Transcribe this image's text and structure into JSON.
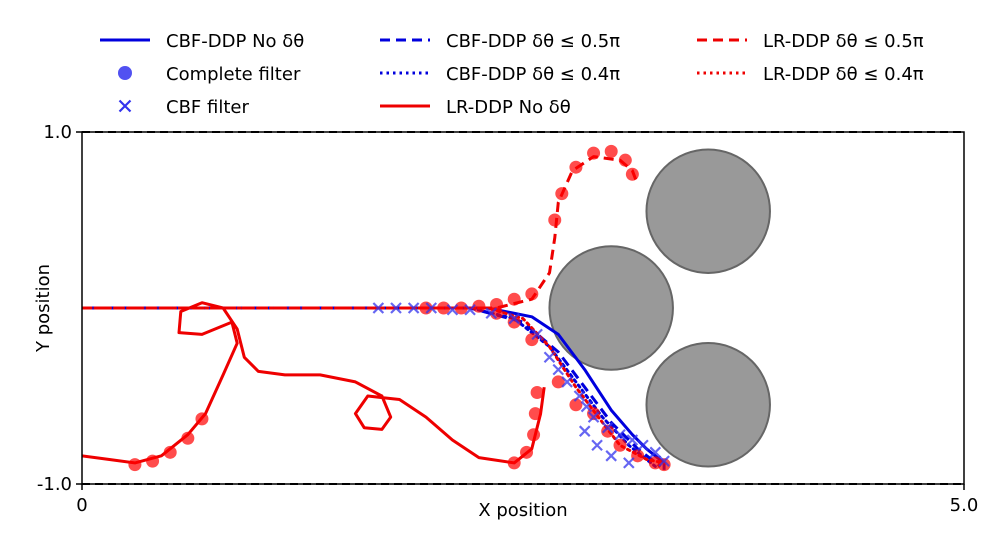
{
  "chart_data": {
    "type": "line",
    "xlabel": "X position",
    "ylabel": "Y position",
    "xlim": [
      0,
      5.0
    ],
    "ylim": [
      -1.0,
      1.0
    ],
    "x_ticks": [
      {
        "value": 0,
        "label": "0"
      },
      {
        "value": 5.0,
        "label": "5.0"
      }
    ],
    "y_ticks": [
      {
        "value": 1.0,
        "label": "1.0"
      },
      {
        "value": -1.0,
        "label": "-1.0"
      }
    ],
    "boundaries": [
      1.0,
      -1.0
    ],
    "obstacles": [
      {
        "cx": 3.55,
        "cy": 0.55,
        "r": 0.35
      },
      {
        "cx": 3.0,
        "cy": 0.0,
        "r": 0.35
      },
      {
        "cx": 3.55,
        "cy": -0.55,
        "r": 0.35
      }
    ],
    "legend": {
      "placement": "top",
      "columns": 3,
      "entries": [
        {
          "label": "CBF-DDP No δθ",
          "style": "solid",
          "color": "#0000dd",
          "kind": "line"
        },
        {
          "label": "Complete filter",
          "style": "marker",
          "color": "#3333ee",
          "kind": "dot"
        },
        {
          "label": "CBF filter",
          "style": "marker",
          "color": "#3333ee",
          "kind": "cross"
        },
        {
          "label": "CBF-DDP δθ ≤ 0.5π",
          "style": "dashed",
          "color": "#0000dd",
          "kind": "line"
        },
        {
          "label": "CBF-DDP δθ ≤ 0.4π",
          "style": "dotted",
          "color": "#0000dd",
          "kind": "line"
        },
        {
          "label": "LR-DDP No δθ",
          "style": "solid",
          "color": "#ee0000",
          "kind": "line"
        },
        {
          "label": "LR-DDP δθ ≤ 0.5π",
          "style": "dashed",
          "color": "#ee0000",
          "kind": "line"
        },
        {
          "label": "LR-DDP δθ ≤ 0.4π",
          "style": "dotted",
          "color": "#ee0000",
          "kind": "line"
        }
      ]
    },
    "series": [
      {
        "name": "CBF-DDP No δθ",
        "color": "#0000dd",
        "style": "solid",
        "points": [
          [
            0,
            0
          ],
          [
            1.5,
            0
          ],
          [
            1.95,
            0
          ],
          [
            2.3,
            0
          ],
          [
            2.55,
            -0.05
          ],
          [
            2.7,
            -0.15
          ],
          [
            2.85,
            -0.35
          ],
          [
            3.0,
            -0.58
          ],
          [
            3.12,
            -0.72
          ],
          [
            3.2,
            -0.8
          ],
          [
            3.3,
            -0.88
          ],
          [
            3.3,
            -0.92
          ]
        ]
      },
      {
        "name": "CBF-DDP δθ ≤ 0.5π",
        "color": "#0000dd",
        "style": "dashed",
        "points": [
          [
            0,
            0
          ],
          [
            1.7,
            0
          ],
          [
            2.2,
            0
          ],
          [
            2.5,
            -0.08
          ],
          [
            2.7,
            -0.25
          ],
          [
            2.85,
            -0.45
          ],
          [
            3.0,
            -0.65
          ],
          [
            3.15,
            -0.8
          ],
          [
            3.28,
            -0.9
          ]
        ]
      },
      {
        "name": "CBF-DDP δθ ≤ 0.4π",
        "color": "#0000dd",
        "style": "dotted",
        "points": [
          [
            0,
            0
          ],
          [
            1.7,
            0
          ],
          [
            2.2,
            0
          ],
          [
            2.45,
            -0.06
          ],
          [
            2.65,
            -0.22
          ],
          [
            2.8,
            -0.42
          ],
          [
            2.95,
            -0.62
          ],
          [
            3.1,
            -0.78
          ],
          [
            3.25,
            -0.9
          ]
        ]
      },
      {
        "name": "LR-DDP No δθ",
        "color": "#ee0000",
        "style": "solid",
        "points": [
          [
            0,
            -0.84
          ],
          [
            0.15,
            -0.86
          ],
          [
            0.3,
            -0.88
          ],
          [
            0.45,
            -0.84
          ],
          [
            0.6,
            -0.72
          ],
          [
            0.7,
            -0.6
          ],
          [
            0.8,
            -0.38
          ],
          [
            0.88,
            -0.2
          ],
          [
            0.85,
            -0.08
          ],
          [
            0.68,
            -0.15
          ],
          [
            0.55,
            -0.14
          ],
          [
            0.56,
            -0.02
          ],
          [
            0.68,
            0.03
          ],
          [
            0.8,
            0.0
          ],
          [
            0.88,
            -0.12
          ],
          [
            0.92,
            -0.28
          ],
          [
            1.0,
            -0.36
          ],
          [
            1.15,
            -0.38
          ],
          [
            1.35,
            -0.38
          ],
          [
            1.55,
            -0.42
          ],
          [
            1.7,
            -0.5
          ],
          [
            1.75,
            -0.62
          ],
          [
            1.7,
            -0.69
          ],
          [
            1.6,
            -0.68
          ],
          [
            1.55,
            -0.6
          ],
          [
            1.62,
            -0.5
          ],
          [
            1.8,
            -0.52
          ],
          [
            1.95,
            -0.62
          ],
          [
            2.1,
            -0.75
          ],
          [
            2.25,
            -0.85
          ],
          [
            2.45,
            -0.88
          ],
          [
            2.55,
            -0.8
          ],
          [
            2.6,
            -0.6
          ],
          [
            2.62,
            -0.45
          ]
        ]
      },
      {
        "name": "LR-DDP δθ ≤ 0.5π",
        "color": "#ee0000",
        "style": "dashed",
        "points": [
          [
            0,
            0
          ],
          [
            1.7,
            0
          ],
          [
            2.35,
            0
          ],
          [
            2.55,
            0.05
          ],
          [
            2.65,
            0.2
          ],
          [
            2.68,
            0.4
          ],
          [
            2.7,
            0.6
          ],
          [
            2.78,
            0.78
          ],
          [
            2.9,
            0.86
          ],
          [
            3.05,
            0.84
          ],
          [
            3.12,
            0.78
          ],
          [
            3.15,
            0.7
          ]
        ]
      },
      {
        "name": "LR-DDP δθ ≤ 0.4π",
        "color": "#ee0000",
        "style": "dotted",
        "points": [
          [
            0,
            0
          ],
          [
            2.3,
            0
          ],
          [
            2.5,
            -0.06
          ],
          [
            2.65,
            -0.22
          ],
          [
            2.8,
            -0.45
          ],
          [
            2.95,
            -0.65
          ],
          [
            3.05,
            -0.78
          ],
          [
            3.2,
            -0.86
          ],
          [
            3.3,
            -0.88
          ]
        ]
      }
    ],
    "filter_markers": [
      {
        "kind": "dot",
        "color": "#ff0000",
        "points": [
          [
            0.3,
            -0.89
          ],
          [
            0.4,
            -0.87
          ],
          [
            0.5,
            -0.82
          ],
          [
            0.6,
            -0.74
          ],
          [
            0.68,
            -0.63
          ]
        ]
      },
      {
        "kind": "dot",
        "color": "#ff0000",
        "points": [
          [
            1.95,
            0
          ],
          [
            2.05,
            0
          ],
          [
            2.15,
            0
          ],
          [
            2.25,
            0.01
          ],
          [
            2.35,
            0.02
          ],
          [
            2.45,
            0.05
          ],
          [
            2.55,
            0.08
          ]
        ]
      },
      {
        "kind": "dot",
        "color": "#ff0000",
        "points": [
          [
            2.68,
            0.5
          ],
          [
            2.72,
            0.65
          ],
          [
            2.8,
            0.8
          ],
          [
            2.9,
            0.88
          ],
          [
            3.0,
            0.89
          ],
          [
            3.08,
            0.84
          ],
          [
            3.12,
            0.76
          ]
        ]
      },
      {
        "kind": "dot",
        "color": "#ff0000",
        "points": [
          [
            2.45,
            -0.88
          ],
          [
            2.52,
            -0.82
          ],
          [
            2.56,
            -0.72
          ],
          [
            2.57,
            -0.6
          ],
          [
            2.58,
            -0.48
          ]
        ]
      },
      {
        "kind": "dot",
        "color": "#ff0000",
        "points": [
          [
            2.35,
            -0.03
          ],
          [
            2.45,
            -0.08
          ],
          [
            2.55,
            -0.18
          ],
          [
            2.7,
            -0.42
          ],
          [
            2.8,
            -0.55
          ]
        ]
      },
      {
        "kind": "dot",
        "color": "#ff0000",
        "points": [
          [
            2.9,
            -0.6
          ],
          [
            2.98,
            -0.7
          ],
          [
            3.05,
            -0.78
          ],
          [
            3.15,
            -0.84
          ],
          [
            3.25,
            -0.88
          ],
          [
            3.3,
            -0.89
          ]
        ]
      },
      {
        "kind": "cross",
        "color": "#3333ee",
        "points": [
          [
            1.68,
            0
          ],
          [
            1.78,
            0
          ],
          [
            1.88,
            0
          ],
          [
            1.98,
            0
          ],
          [
            2.1,
            -0.01
          ],
          [
            2.2,
            -0.01
          ],
          [
            2.32,
            -0.03
          ],
          [
            2.45,
            -0.06
          ],
          [
            2.58,
            -0.15
          ],
          [
            2.65,
            -0.28
          ],
          [
            2.7,
            -0.35
          ],
          [
            2.75,
            -0.42
          ],
          [
            2.82,
            -0.5
          ],
          [
            2.86,
            -0.56
          ],
          [
            2.9,
            -0.62
          ],
          [
            2.98,
            -0.68
          ],
          [
            3.05,
            -0.72
          ],
          [
            3.12,
            -0.75
          ],
          [
            3.18,
            -0.78
          ],
          [
            3.25,
            -0.82
          ],
          [
            3.3,
            -0.87
          ],
          [
            2.92,
            -0.78
          ],
          [
            3.0,
            -0.84
          ],
          [
            3.1,
            -0.88
          ],
          [
            2.85,
            -0.7
          ]
        ]
      }
    ]
  }
}
